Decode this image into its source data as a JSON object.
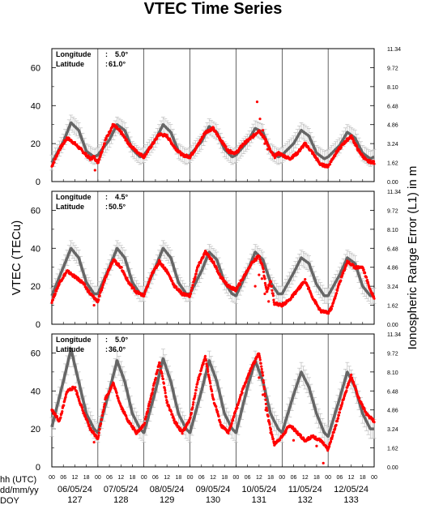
{
  "chart_data": {
    "type": "line",
    "title": "VTEC Time Series",
    "ylabel_left": "VTEC (TECu)",
    "ylabel_right": "Ionospheric Range Error (L1) in m",
    "left_yticks": [
      0,
      20,
      40,
      60
    ],
    "right_yticks": [
      "0.00",
      "1.62",
      "3.24",
      "4.86",
      "6.48",
      "8.10",
      "9.72",
      "11.34"
    ],
    "ylim": [
      0,
      70
    ],
    "x_hour_ticks": [
      "00",
      "06",
      "12",
      "18"
    ],
    "x_row_labels": [
      "hh (UTC)",
      "dd/mm/yy",
      "DOY"
    ],
    "dates": [
      "06/05/24",
      "07/05/24",
      "08/05/24",
      "09/05/24",
      "10/05/24",
      "11/05/24",
      "12/05/24"
    ],
    "doys": [
      "127",
      "128",
      "129",
      "130",
      "131",
      "132",
      "133"
    ],
    "x_unit": "hour since 06/05/24 00 UTC",
    "panels": [
      {
        "lon_label": "Longitude",
        "lon_value": "5.0°",
        "lat_label": "Latitude",
        "lat_value": "61.0°",
        "model": {
          "x": [
            0,
            6,
            10,
            14,
            18,
            22,
            24,
            30,
            34,
            38,
            42,
            46,
            48,
            54,
            58,
            62,
            66,
            70,
            72,
            78,
            82,
            86,
            90,
            94,
            96,
            102,
            106,
            110,
            114,
            118,
            120,
            126,
            130,
            134,
            138,
            142,
            144,
            150,
            154,
            158,
            162,
            166,
            168
          ],
          "y": [
            10,
            21,
            31,
            27,
            16,
            13,
            14,
            22,
            30,
            27,
            17,
            13,
            14,
            22,
            30,
            26,
            16,
            13,
            14,
            21,
            29,
            26,
            17,
            13,
            14,
            21,
            28,
            26,
            16,
            13,
            14,
            20,
            27,
            24,
            15,
            12,
            13,
            19,
            26,
            23,
            15,
            12,
            13
          ],
          "err": [
            4,
            4,
            4,
            4,
            4,
            4,
            4,
            4,
            4,
            4,
            4,
            4,
            4,
            4,
            4,
            4,
            4,
            4,
            4,
            4,
            4,
            4,
            4,
            4,
            4,
            4,
            4,
            4,
            4,
            4,
            4,
            4,
            4,
            4,
            4,
            4,
            4,
            4,
            4,
            4,
            4,
            4,
            4
          ]
        },
        "obs": {
          "x": [
            0,
            4,
            8,
            12,
            16,
            20,
            22,
            24,
            28,
            32,
            36,
            40,
            44,
            48,
            52,
            56,
            60,
            64,
            68,
            72,
            76,
            80,
            84,
            88,
            92,
            96,
            100,
            104,
            108,
            110,
            112,
            114,
            116,
            118,
            120,
            124,
            128,
            132,
            136,
            140,
            144,
            148,
            152,
            156,
            160,
            164,
            168
          ],
          "y": [
            8,
            17,
            23,
            20,
            16,
            12,
            13,
            10,
            22,
            30,
            26,
            20,
            16,
            13,
            19,
            25,
            24,
            18,
            14,
            13,
            19,
            26,
            28,
            22,
            16,
            15,
            20,
            23,
            27,
            24,
            21,
            16,
            13,
            15,
            14,
            12,
            15,
            20,
            15,
            9,
            8,
            15,
            20,
            24,
            16,
            11,
            10
          ]
        },
        "outliers": {
          "x": [
            22.5,
            107,
            108.5,
            110,
            111,
            112.5
          ],
          "y": [
            6,
            42,
            33,
            27,
            20,
            17
          ]
        }
      },
      {
        "lon_label": "Longitude",
        "lon_value": "4.5°",
        "lat_label": "Latitude",
        "lat_value": "50.5°",
        "model": {
          "x": [
            0,
            6,
            10,
            14,
            18,
            22,
            24,
            30,
            34,
            38,
            42,
            46,
            48,
            54,
            58,
            62,
            66,
            70,
            72,
            78,
            82,
            86,
            90,
            94,
            96,
            102,
            106,
            110,
            114,
            118,
            120,
            126,
            130,
            134,
            138,
            142,
            144,
            150,
            154,
            158,
            162,
            166,
            168
          ],
          "y": [
            15,
            30,
            40,
            35,
            22,
            16,
            16,
            30,
            40,
            35,
            22,
            16,
            16,
            30,
            40,
            35,
            22,
            16,
            16,
            28,
            38,
            34,
            22,
            16,
            15,
            28,
            38,
            34,
            22,
            16,
            16,
            27,
            35,
            32,
            21,
            15,
            15,
            26,
            35,
            32,
            20,
            15,
            15
          ],
          "err": [
            4,
            4,
            4,
            4,
            4,
            4,
            4,
            4,
            4,
            4,
            4,
            4,
            4,
            4,
            4,
            4,
            4,
            4,
            4,
            4,
            4,
            4,
            4,
            4,
            4,
            4,
            4,
            4,
            4,
            4,
            4,
            4,
            4,
            4,
            4,
            4,
            4,
            4,
            4,
            4,
            4,
            4,
            4
          ]
        },
        "obs": {
          "x": [
            0,
            4,
            8,
            12,
            16,
            20,
            24,
            28,
            32,
            36,
            40,
            44,
            48,
            52,
            56,
            60,
            64,
            68,
            72,
            76,
            80,
            84,
            88,
            92,
            96,
            100,
            104,
            108,
            110,
            112,
            114,
            116,
            120,
            124,
            128,
            132,
            136,
            140,
            144,
            146,
            150,
            154,
            158,
            162,
            166,
            168
          ],
          "y": [
            12,
            22,
            28,
            25,
            22,
            16,
            12,
            25,
            34,
            30,
            22,
            17,
            15,
            26,
            33,
            28,
            20,
            16,
            15,
            30,
            38,
            33,
            25,
            20,
            18,
            25,
            32,
            36,
            30,
            17,
            23,
            11,
            10,
            13,
            18,
            23,
            14,
            7,
            6,
            9,
            22,
            33,
            30,
            30,
            18,
            14
          ]
        },
        "outliers": {
          "x": [
            22,
            106,
            108,
            109.5,
            111,
            113
          ],
          "y": [
            10,
            20,
            26,
            24,
            16,
            12
          ]
        }
      },
      {
        "lon_label": "Longitude",
        "lon_value": "5.0°",
        "lat_label": "Latitude",
        "lat_value": "36.0°",
        "model": {
          "x": [
            0,
            6,
            10,
            14,
            18,
            22,
            24,
            30,
            34,
            38,
            42,
            46,
            48,
            54,
            58,
            62,
            66,
            70,
            72,
            78,
            82,
            86,
            90,
            94,
            96,
            102,
            106,
            110,
            114,
            118,
            120,
            126,
            130,
            134,
            138,
            142,
            144,
            150,
            154,
            158,
            162,
            166,
            168
          ],
          "y": [
            21,
            45,
            62,
            45,
            28,
            20,
            18,
            40,
            56,
            45,
            28,
            20,
            18,
            40,
            57,
            45,
            28,
            20,
            18,
            40,
            56,
            45,
            28,
            20,
            18,
            42,
            56,
            45,
            28,
            20,
            18,
            38,
            50,
            42,
            28,
            18,
            16,
            36,
            50,
            42,
            28,
            20,
            20
          ],
          "err": [
            5,
            5,
            5,
            5,
            5,
            5,
            5,
            5,
            5,
            5,
            5,
            5,
            5,
            5,
            5,
            5,
            5,
            5,
            5,
            5,
            5,
            5,
            5,
            5,
            5,
            5,
            5,
            5,
            5,
            5,
            5,
            5,
            5,
            5,
            5,
            5,
            5,
            5,
            5,
            5,
            5,
            5,
            5
          ]
        },
        "obs": {
          "x": [
            0,
            4,
            8,
            12,
            16,
            20,
            24,
            28,
            32,
            36,
            40,
            44,
            48,
            52,
            56,
            58,
            60,
            64,
            68,
            72,
            76,
            80,
            84,
            86,
            88,
            92,
            96,
            100,
            104,
            108,
            110,
            112,
            114,
            116,
            120,
            124,
            128,
            132,
            136,
            140,
            144,
            148,
            152,
            156,
            160,
            164,
            168
          ],
          "y": [
            30,
            24,
            40,
            42,
            30,
            20,
            15,
            36,
            44,
            32,
            24,
            18,
            22,
            38,
            55,
            46,
            34,
            24,
            18,
            25,
            45,
            58,
            36,
            30,
            22,
            18,
            30,
            42,
            52,
            60,
            48,
            30,
            20,
            12,
            16,
            22,
            18,
            14,
            16,
            14,
            9,
            22,
            36,
            48,
            36,
            28,
            24
          ]
        },
        "outliers": {
          "x": [
            22,
            108,
            110,
            111.5,
            113,
            114,
            126,
            138,
            141.5
          ],
          "y": [
            13,
            47,
            38,
            30,
            24,
            18,
            14,
            11,
            2
          ]
        }
      }
    ],
    "colors": {
      "obs": "#ff0000",
      "model": "#666666",
      "error_bars": "#b4b4b4",
      "frame": "#000000",
      "day_line": "#000000"
    }
  }
}
